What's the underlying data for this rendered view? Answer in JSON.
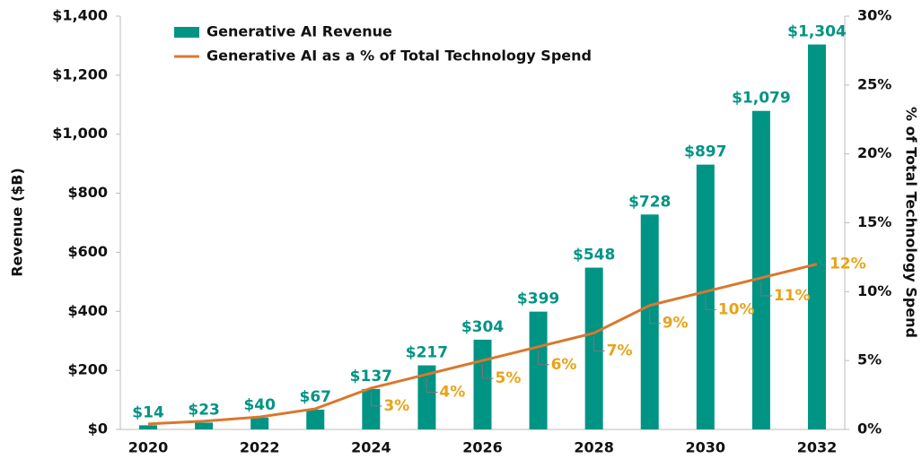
{
  "chart_data": {
    "type": "bar_line",
    "legend_position": "upper left",
    "y_label": "Revenue ($B)",
    "y2_label": "% of Total Technology Spend",
    "categories": [
      "2020",
      null,
      "2022",
      null,
      "2024",
      null,
      "2026",
      null,
      "2028",
      null,
      "2030",
      null,
      "2032"
    ],
    "series": [
      {
        "name": "Generative AI Revenue",
        "type": "bar",
        "color": "#009485",
        "label_color": "#009485",
        "values": [
          14,
          23,
          40,
          67,
          137,
          217,
          304,
          399,
          548,
          728,
          897,
          1079,
          1304
        ],
        "value_labels": [
          "$14",
          "$23",
          "$40",
          "$67",
          "$137",
          "$217",
          "$304",
          "$399",
          "$548",
          "$728",
          "$897",
          "$1,079",
          "$1,304"
        ]
      },
      {
        "name": "Generative AI as a % of Total Technology Spend",
        "type": "line",
        "axis": "y2",
        "color": "#d9782d",
        "label_color": "#e8a317",
        "values": [
          0.4,
          0.6,
          0.9,
          1.5,
          3,
          4,
          5,
          6,
          7,
          9,
          10,
          11,
          12
        ],
        "value_labels": [
          null,
          null,
          null,
          null,
          "3%",
          "4%",
          "5%",
          "6%",
          "7%",
          "9%",
          "10%",
          "11%",
          "12%"
        ]
      }
    ],
    "ylim": [
      0,
      1400
    ],
    "yticks": [
      {
        "value": 0,
        "label": "$0"
      },
      {
        "value": 200,
        "label": "$200"
      },
      {
        "value": 400,
        "label": "$400"
      },
      {
        "value": 600,
        "label": "$600"
      },
      {
        "value": 800,
        "label": "$800"
      },
      {
        "value": 1000,
        "label": "$1,000"
      },
      {
        "value": 1200,
        "label": "$1,200"
      },
      {
        "value": 1400,
        "label": "$1,400"
      }
    ],
    "y2lim": [
      0,
      30
    ],
    "y2ticks": [
      {
        "value": 0,
        "label": "0%"
      },
      {
        "value": 5,
        "label": "5%"
      },
      {
        "value": 10,
        "label": "10%"
      },
      {
        "value": 15,
        "label": "15%"
      },
      {
        "value": 20,
        "label": "20%"
      },
      {
        "value": 25,
        "label": "25%"
      },
      {
        "value": 30,
        "label": "30%"
      }
    ]
  }
}
